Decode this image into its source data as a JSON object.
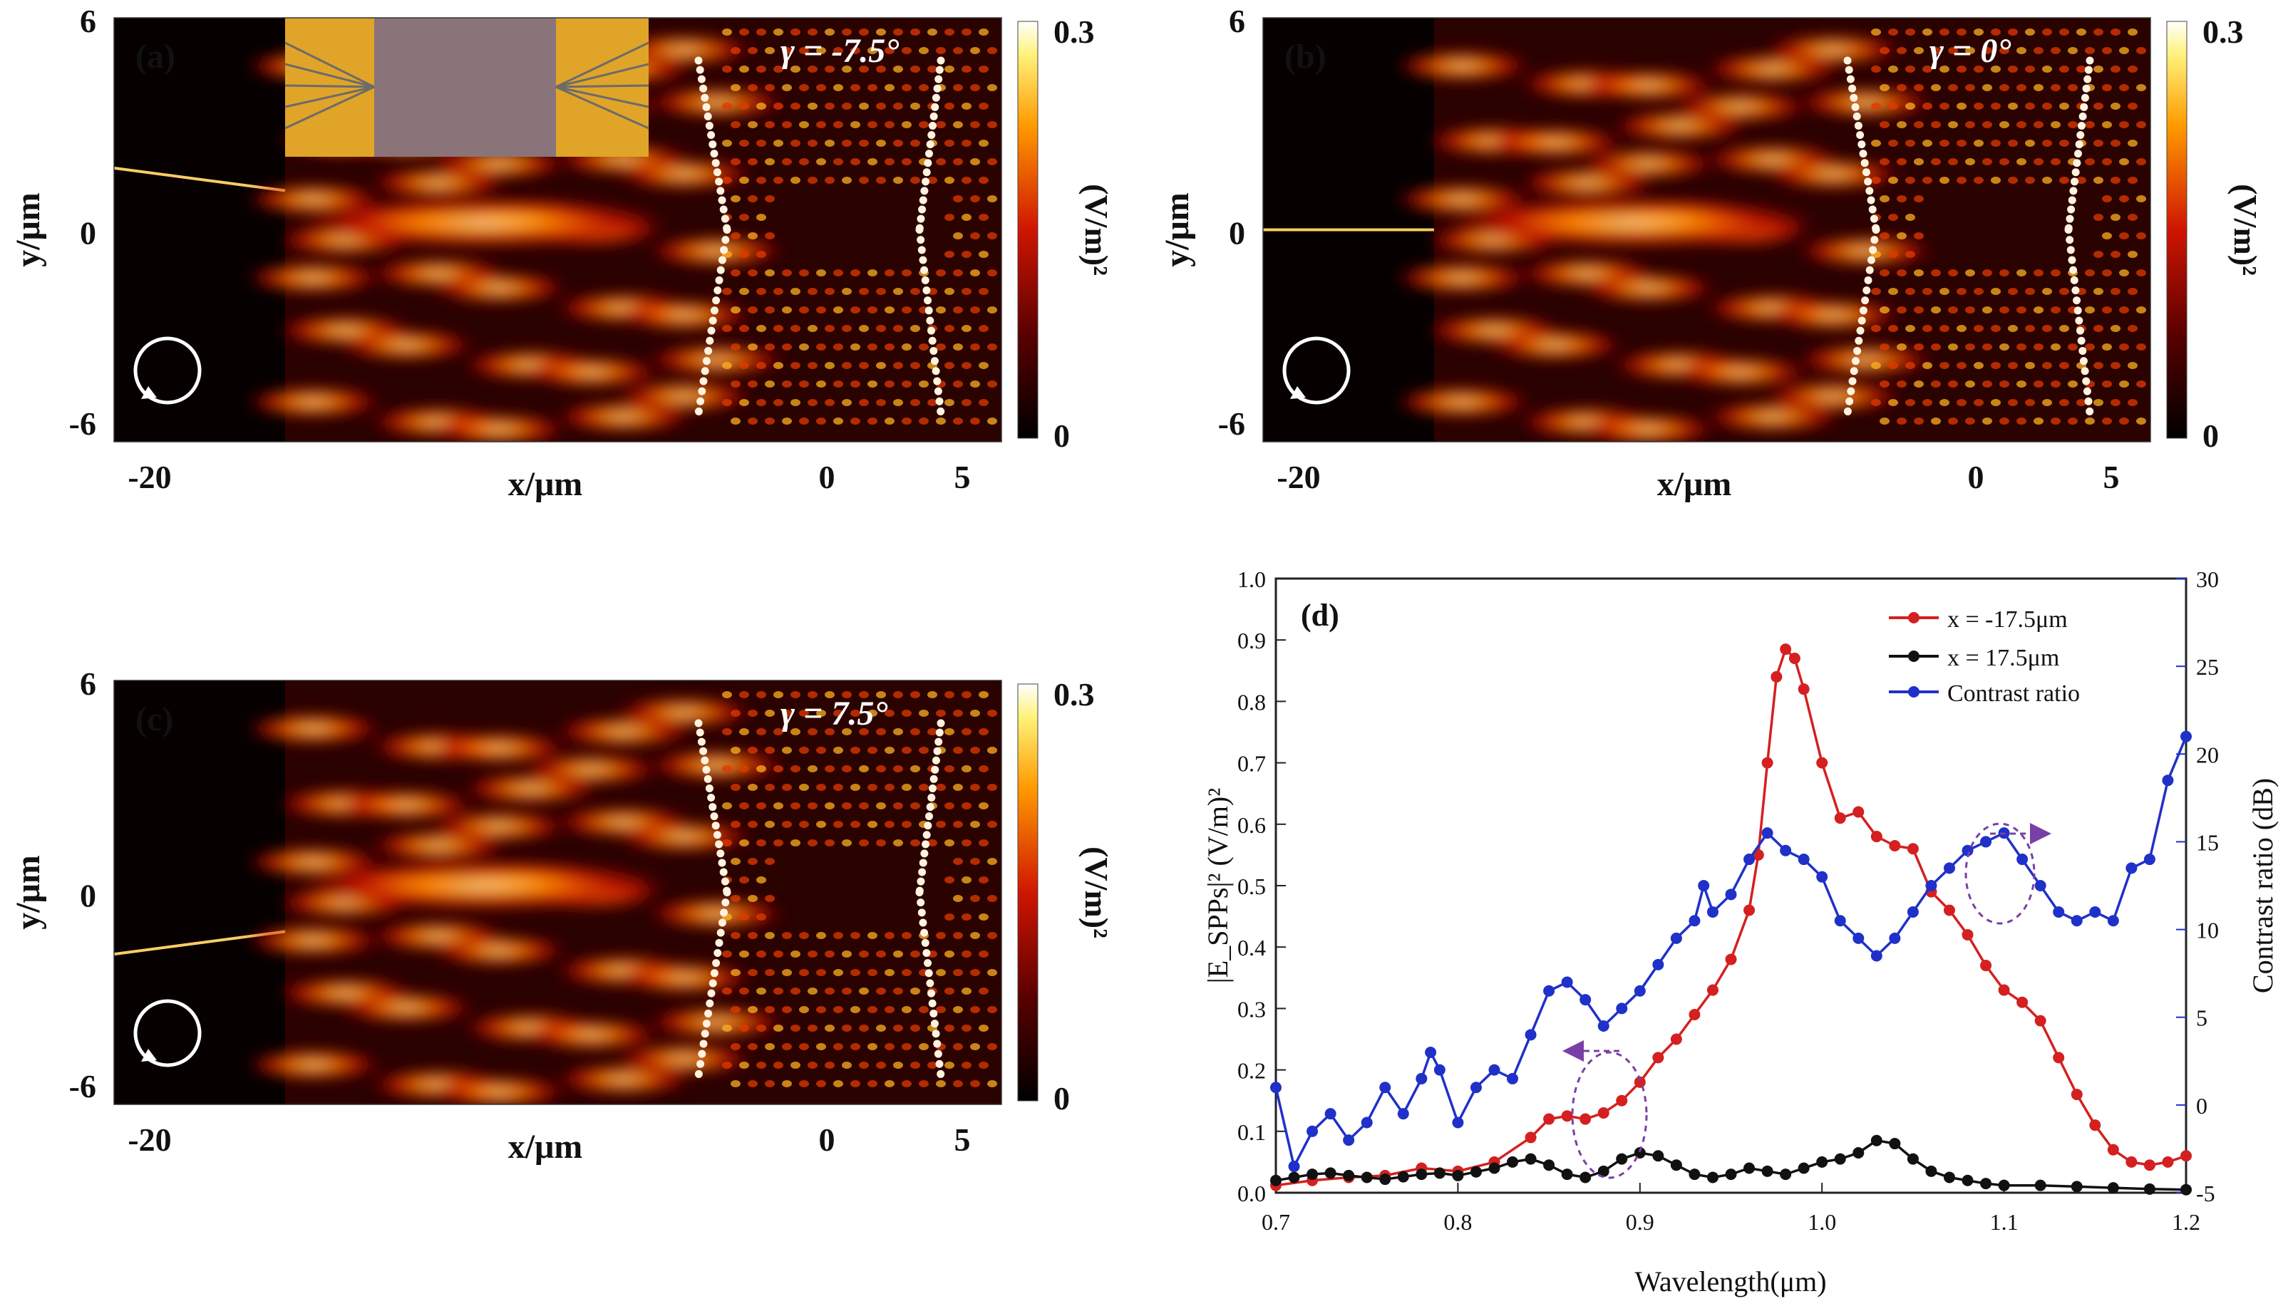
{
  "colors": {
    "red": "#d42020",
    "black": "#111111",
    "blue": "#1f31c8",
    "annot": "#7a3fa6"
  },
  "field_panels": [
    {
      "label": "(a)",
      "gamma_text": "γ = -7.5°",
      "y_axis_label": "y/μm",
      "x_axis_label": "x/μm",
      "y_ticks": [
        "6",
        "0",
        "-6"
      ],
      "x_ticks": [
        "-20",
        "0",
        "5"
      ],
      "colorbar_max": "0.3",
      "colorbar_min": "0",
      "colorbar_label": "(V/m)²",
      "beam_tilt_deg": -7.5,
      "inset": true
    },
    {
      "label": "(b)",
      "gamma_text": "γ = 0°",
      "y_axis_label": "y/μm",
      "x_axis_label": "x/μm",
      "y_ticks": [
        "6",
        "0",
        "-6"
      ],
      "x_ticks": [
        "-20",
        "0",
        "5"
      ],
      "colorbar_max": "0.3",
      "colorbar_min": "0",
      "colorbar_label": "(V/m)²",
      "beam_tilt_deg": 0,
      "inset": false
    },
    {
      "label": "(c)",
      "gamma_text": "γ = 7.5°",
      "y_axis_label": "y/μm",
      "x_axis_label": "x/μm",
      "y_ticks": [
        "6",
        "0",
        "-6"
      ],
      "x_ticks": [
        "-20",
        "0",
        "5"
      ],
      "colorbar_max": "0.3",
      "colorbar_min": "0",
      "colorbar_label": "(V/m)²",
      "beam_tilt_deg": 7.5,
      "inset": false
    }
  ],
  "chart_data": {
    "type": "line",
    "panel_label": "(d)",
    "xlabel": "Wavelength(μm)",
    "ylabel": "|E_SPPs|² (V/m)²",
    "y2label": "Contrast ratio (dB)",
    "xlim": [
      0.7,
      1.2
    ],
    "ylim": [
      0,
      1.0
    ],
    "y2lim": [
      -5,
      30
    ],
    "x_ticks": [
      "0.7",
      "0.8",
      "0.9",
      "1.0",
      "1.1",
      "1.2"
    ],
    "y_ticks": [
      "0.0",
      "0.1",
      "0.2",
      "0.3",
      "0.4",
      "0.5",
      "0.6",
      "0.7",
      "0.8",
      "0.9",
      "1.0"
    ],
    "y2_ticks": [
      "-5",
      "0",
      "5",
      "10",
      "15",
      "20",
      "25",
      "30"
    ],
    "legend_position": "top-right",
    "series": [
      {
        "name": "x = -17.5μm",
        "axis": "left",
        "color": "#d42020",
        "points": [
          [
            0.7,
            0.012
          ],
          [
            0.72,
            0.02
          ],
          [
            0.74,
            0.025
          ],
          [
            0.76,
            0.028
          ],
          [
            0.78,
            0.04
          ],
          [
            0.8,
            0.035
          ],
          [
            0.82,
            0.05
          ],
          [
            0.84,
            0.09
          ],
          [
            0.85,
            0.12
          ],
          [
            0.86,
            0.125
          ],
          [
            0.87,
            0.12
          ],
          [
            0.88,
            0.13
          ],
          [
            0.89,
            0.15
          ],
          [
            0.9,
            0.18
          ],
          [
            0.91,
            0.22
          ],
          [
            0.92,
            0.25
          ],
          [
            0.93,
            0.29
          ],
          [
            0.94,
            0.33
          ],
          [
            0.95,
            0.38
          ],
          [
            0.96,
            0.46
          ],
          [
            0.965,
            0.55
          ],
          [
            0.97,
            0.7
          ],
          [
            0.975,
            0.84
          ],
          [
            0.98,
            0.885
          ],
          [
            0.985,
            0.87
          ],
          [
            0.99,
            0.82
          ],
          [
            1.0,
            0.7
          ],
          [
            1.01,
            0.61
          ],
          [
            1.02,
            0.62
          ],
          [
            1.03,
            0.58
          ],
          [
            1.04,
            0.565
          ],
          [
            1.05,
            0.56
          ],
          [
            1.06,
            0.49
          ],
          [
            1.07,
            0.46
          ],
          [
            1.08,
            0.42
          ],
          [
            1.09,
            0.37
          ],
          [
            1.1,
            0.33
          ],
          [
            1.11,
            0.31
          ],
          [
            1.12,
            0.28
          ],
          [
            1.13,
            0.22
          ],
          [
            1.14,
            0.16
          ],
          [
            1.15,
            0.11
          ],
          [
            1.16,
            0.07
          ],
          [
            1.17,
            0.05
          ],
          [
            1.18,
            0.045
          ],
          [
            1.19,
            0.05
          ],
          [
            1.2,
            0.06
          ]
        ]
      },
      {
        "name": "x = 17.5μm",
        "axis": "left",
        "color": "#111111",
        "points": [
          [
            0.7,
            0.02
          ],
          [
            0.71,
            0.025
          ],
          [
            0.72,
            0.03
          ],
          [
            0.73,
            0.032
          ],
          [
            0.74,
            0.028
          ],
          [
            0.75,
            0.025
          ],
          [
            0.76,
            0.022
          ],
          [
            0.77,
            0.026
          ],
          [
            0.78,
            0.03
          ],
          [
            0.79,
            0.032
          ],
          [
            0.8,
            0.028
          ],
          [
            0.81,
            0.034
          ],
          [
            0.82,
            0.04
          ],
          [
            0.83,
            0.05
          ],
          [
            0.84,
            0.055
          ],
          [
            0.85,
            0.045
          ],
          [
            0.86,
            0.03
          ],
          [
            0.87,
            0.025
          ],
          [
            0.88,
            0.035
          ],
          [
            0.89,
            0.055
          ],
          [
            0.9,
            0.065
          ],
          [
            0.91,
            0.06
          ],
          [
            0.92,
            0.045
          ],
          [
            0.93,
            0.03
          ],
          [
            0.94,
            0.025
          ],
          [
            0.95,
            0.03
          ],
          [
            0.96,
            0.04
          ],
          [
            0.97,
            0.035
          ],
          [
            0.98,
            0.03
          ],
          [
            0.99,
            0.04
          ],
          [
            1.0,
            0.05
          ],
          [
            1.01,
            0.055
          ],
          [
            1.02,
            0.065
          ],
          [
            1.03,
            0.085
          ],
          [
            1.04,
            0.08
          ],
          [
            1.05,
            0.055
          ],
          [
            1.06,
            0.035
          ],
          [
            1.07,
            0.025
          ],
          [
            1.08,
            0.02
          ],
          [
            1.09,
            0.015
          ],
          [
            1.1,
            0.012
          ],
          [
            1.12,
            0.012
          ],
          [
            1.14,
            0.01
          ],
          [
            1.16,
            0.008
          ],
          [
            1.18,
            0.006
          ],
          [
            1.2,
            0.005
          ]
        ]
      },
      {
        "name": "Contrast ratio",
        "axis": "right",
        "color": "#1f31c8",
        "points": [
          [
            0.7,
            1.0
          ],
          [
            0.71,
            -3.5
          ],
          [
            0.72,
            -1.5
          ],
          [
            0.73,
            -0.5
          ],
          [
            0.74,
            -2.0
          ],
          [
            0.75,
            -1.0
          ],
          [
            0.76,
            1.0
          ],
          [
            0.77,
            -0.5
          ],
          [
            0.78,
            1.5
          ],
          [
            0.785,
            3.0
          ],
          [
            0.79,
            2.0
          ],
          [
            0.8,
            -1.0
          ],
          [
            0.81,
            1.0
          ],
          [
            0.82,
            2.0
          ],
          [
            0.83,
            1.5
          ],
          [
            0.84,
            4.0
          ],
          [
            0.85,
            6.5
          ],
          [
            0.86,
            7.0
          ],
          [
            0.87,
            6.0
          ],
          [
            0.88,
            4.5
          ],
          [
            0.89,
            5.5
          ],
          [
            0.9,
            6.5
          ],
          [
            0.91,
            8.0
          ],
          [
            0.92,
            9.5
          ],
          [
            0.93,
            10.5
          ],
          [
            0.935,
            12.5
          ],
          [
            0.94,
            11.0
          ],
          [
            0.95,
            12.0
          ],
          [
            0.96,
            14.0
          ],
          [
            0.97,
            15.5
          ],
          [
            0.98,
            14.5
          ],
          [
            0.99,
            14.0
          ],
          [
            1.0,
            13.0
          ],
          [
            1.01,
            10.5
          ],
          [
            1.02,
            9.5
          ],
          [
            1.03,
            8.5
          ],
          [
            1.04,
            9.5
          ],
          [
            1.05,
            11.0
          ],
          [
            1.06,
            12.5
          ],
          [
            1.07,
            13.5
          ],
          [
            1.08,
            14.5
          ],
          [
            1.09,
            15.0
          ],
          [
            1.1,
            15.5
          ],
          [
            1.11,
            14.0
          ],
          [
            1.12,
            12.5
          ],
          [
            1.13,
            11.0
          ],
          [
            1.14,
            10.5
          ],
          [
            1.15,
            11.0
          ],
          [
            1.16,
            10.5
          ],
          [
            1.17,
            13.5
          ],
          [
            1.18,
            14.0
          ],
          [
            1.19,
            18.5
          ],
          [
            1.2,
            21.0
          ]
        ]
      }
    ]
  }
}
